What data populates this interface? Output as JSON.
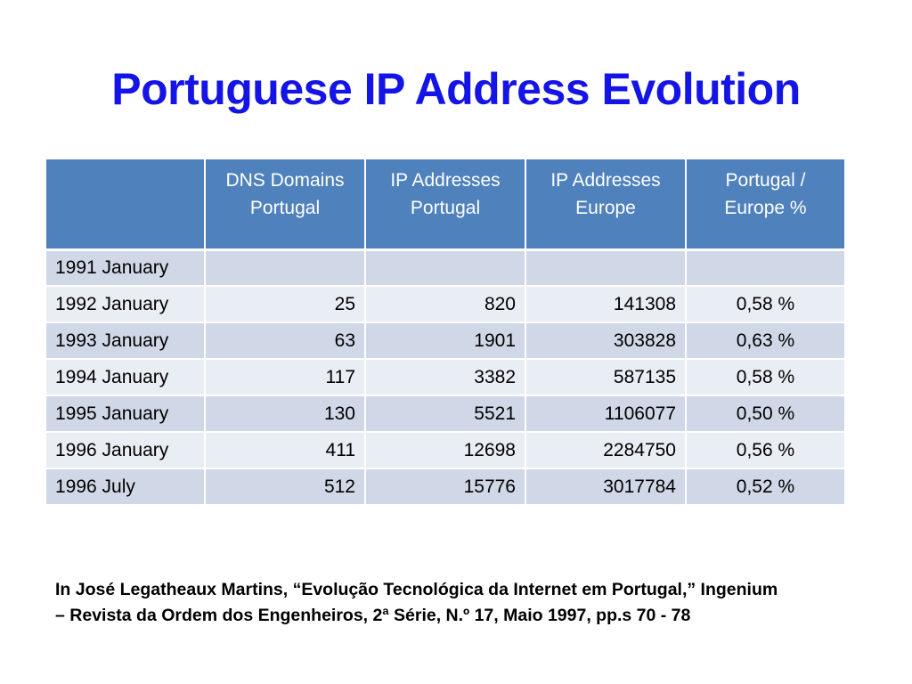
{
  "slide": {
    "title": "Portuguese IP Address Evolution",
    "citation_line1": "In José Legatheaux Martins, “Evolução Tecnológica da Internet em Portugal,” Ingenium",
    "citation_line2": "– Revista da Ordem dos Engenheiros, 2ª Série, N.º 17, Maio 1997, pp.s 70 - 78"
  },
  "table": {
    "headers": [
      {
        "line1": "",
        "line2": ""
      },
      {
        "line1": "DNS Domains",
        "line2": "Portugal"
      },
      {
        "line1": "IP Addresses",
        "line2": "Portugal"
      },
      {
        "line1": "IP Addresses",
        "line2": "Europe"
      },
      {
        "line1": "Portugal  /",
        "line2": "Europe %"
      }
    ],
    "rows": [
      {
        "date": "1991 January",
        "dns": "",
        "ip_pt": "",
        "ip_eu": "",
        "pct": ""
      },
      {
        "date": "1992 January",
        "dns": "25",
        "ip_pt": "820",
        "ip_eu": "141308",
        "pct": "0,58 %"
      },
      {
        "date": "1993 January",
        "dns": "63",
        "ip_pt": "1901",
        "ip_eu": "303828",
        "pct": "0,63 %"
      },
      {
        "date": "1994 January",
        "dns": "117",
        "ip_pt": "3382",
        "ip_eu": "587135",
        "pct": "0,58 %"
      },
      {
        "date": "1995 January",
        "dns": "130",
        "ip_pt": "5521",
        "ip_eu": "1106077",
        "pct": "0,50 %"
      },
      {
        "date": "1996 January",
        "dns": "411",
        "ip_pt": "12698",
        "ip_eu": "2284750",
        "pct": "0,56 %"
      },
      {
        "date": "1996 July",
        "dns": "512",
        "ip_pt": "15776",
        "ip_eu": "3017784",
        "pct": "0,52 %"
      }
    ]
  },
  "colors": {
    "title": "#1414e6",
    "header_bg": "#4f81bd",
    "row_dark": "#d0d8e8",
    "row_light": "#e9edf4"
  }
}
